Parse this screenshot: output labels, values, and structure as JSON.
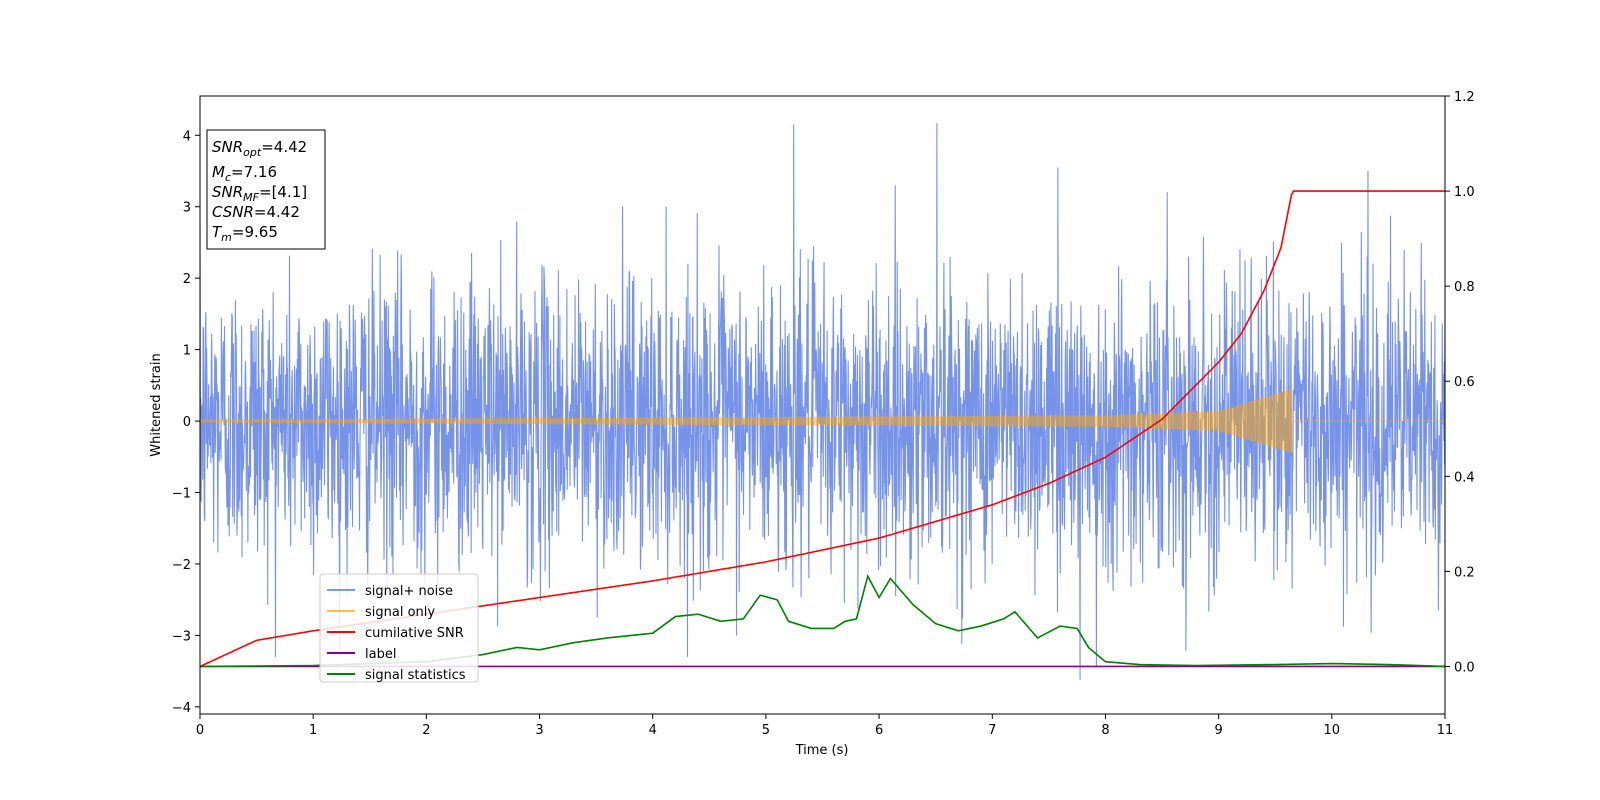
{
  "chart_data": {
    "type": "line",
    "title": "",
    "xlabel": "Time (s)",
    "ylabel": "Whitened strain",
    "y2label": "",
    "xlim": [
      0,
      11
    ],
    "ylim": [
      -4.1,
      4.55
    ],
    "y2lim": [
      -0.1,
      1.2
    ],
    "xticks": [
      "0",
      "1",
      "2",
      "3",
      "4",
      "5",
      "6",
      "7",
      "8",
      "9",
      "10",
      "11"
    ],
    "yticks": [
      "4",
      "3",
      "2",
      "1",
      "0",
      "−1",
      "−2",
      "−3",
      "−4"
    ],
    "y2ticks": [
      "1.2",
      "1.0",
      "0.8",
      "0.6",
      "0.4",
      "0.2",
      "0.0"
    ],
    "grid": false,
    "legend_position": "lower-left",
    "info_box": {
      "lines": [
        {
          "sym": "SNR",
          "sub": "opt",
          "value": "=4.42"
        },
        {
          "sym": "M",
          "sub": "c",
          "value": "=7.16"
        },
        {
          "sym": "SNR",
          "sub": "MF",
          "value": "=[4.1]"
        },
        {
          "sym": "CSNR",
          "sub": "",
          "value": "=4.42"
        },
        {
          "sym": "T",
          "sub": "m",
          "value": "=9.65"
        }
      ]
    },
    "series": [
      {
        "name": "signal+ noise",
        "color": "#4169e1",
        "axis": "left",
        "noise_std": 1.0,
        "peak_values": [
          4.15,
          4.17,
          3.55,
          3.5,
          -3.62,
          -3.45
        ]
      },
      {
        "name": "signal only",
        "color": "#ffa500",
        "axis": "left",
        "merger_time": 9.65,
        "amplitude": [
          [
            0,
            0.02
          ],
          [
            8,
            0.08
          ],
          [
            9,
            0.14
          ],
          [
            9.65,
            0.45
          ]
        ]
      },
      {
        "name": "cumilative SNR",
        "color": "#ff0000",
        "axis": "right",
        "x": [
          0,
          0.5,
          1,
          2,
          3,
          4,
          5,
          6,
          7,
          7.5,
          8,
          8.5,
          9,
          9.2,
          9.4,
          9.55,
          9.65,
          11
        ],
        "values": [
          0.0,
          0.055,
          0.075,
          0.11,
          0.145,
          0.18,
          0.22,
          0.27,
          0.34,
          0.385,
          0.44,
          0.52,
          0.64,
          0.7,
          0.79,
          0.88,
          1.0,
          1.0
        ]
      },
      {
        "name": "label",
        "color": "#800080",
        "axis": "right",
        "x": [
          0,
          11
        ],
        "values": [
          0.0,
          0.0
        ]
      },
      {
        "name": "signal statistics",
        "color": "#008000",
        "axis": "right",
        "x": [
          0,
          1,
          2,
          2.5,
          2.8,
          3,
          3.3,
          3.6,
          3.8,
          4,
          4.2,
          4.4,
          4.6,
          4.8,
          4.95,
          5.1,
          5.2,
          5.4,
          5.6,
          5.7,
          5.8,
          5.9,
          6.0,
          6.1,
          6.3,
          6.5,
          6.7,
          6.9,
          7.1,
          7.2,
          7.4,
          7.6,
          7.75,
          7.85,
          8.0,
          8.3,
          8.8,
          9.5,
          10,
          10.5,
          11
        ],
        "values": [
          0.0,
          0.002,
          0.01,
          0.025,
          0.04,
          0.035,
          0.05,
          0.06,
          0.065,
          0.07,
          0.105,
          0.11,
          0.095,
          0.1,
          0.15,
          0.14,
          0.095,
          0.08,
          0.08,
          0.095,
          0.1,
          0.19,
          0.145,
          0.185,
          0.13,
          0.09,
          0.075,
          0.085,
          0.1,
          0.115,
          0.06,
          0.085,
          0.08,
          0.04,
          0.01,
          0.004,
          0.002,
          0.004,
          0.006,
          0.004,
          0.0
        ]
      }
    ]
  }
}
